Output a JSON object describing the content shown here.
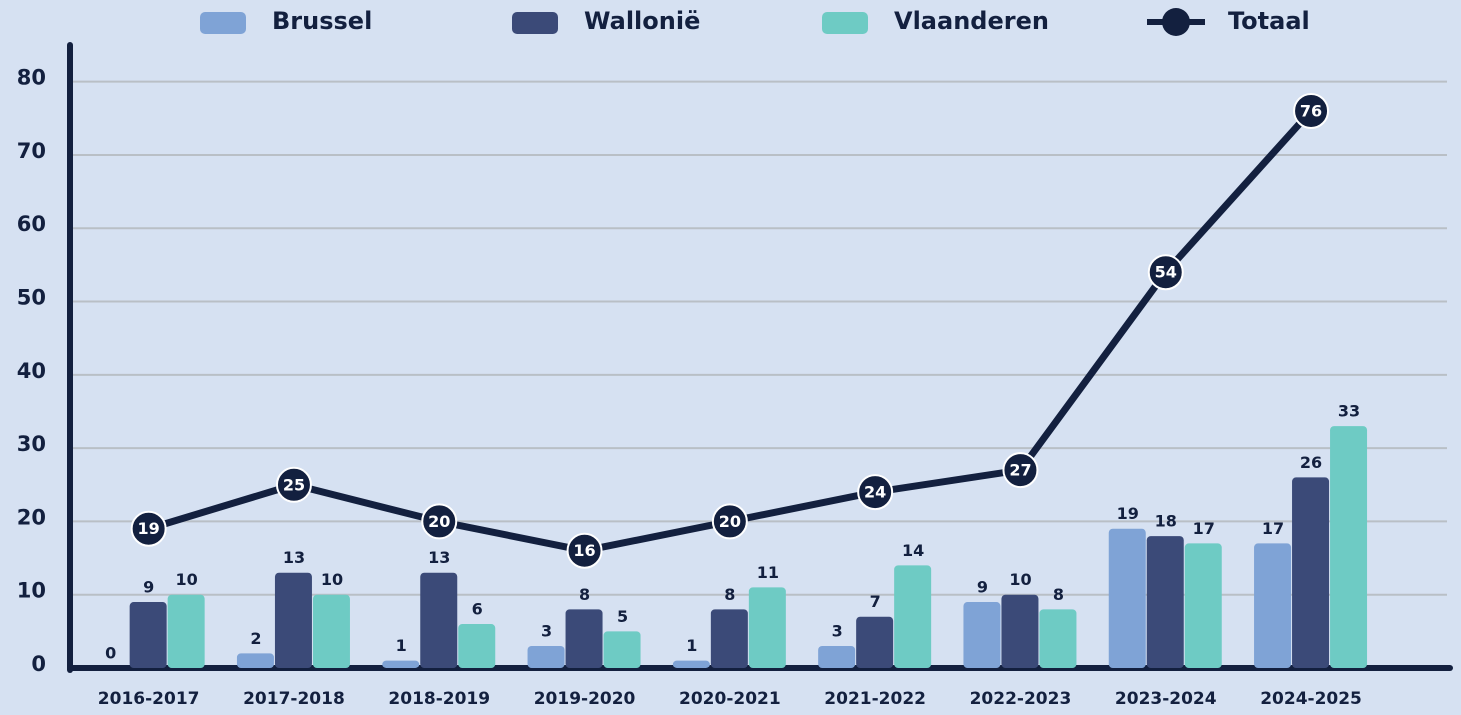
{
  "chart_data": {
    "type": "bar",
    "categories": [
      "2016-2017",
      "2017-2018",
      "2018-2019",
      "2019-2020",
      "2020-2021",
      "2021-2022",
      "2022-2023",
      "2023-2024",
      "2024-2025"
    ],
    "series": [
      {
        "name": "Brussel",
        "color": "#7fa3d6",
        "type": "bar",
        "values": [
          0,
          2,
          1,
          3,
          1,
          3,
          9,
          19,
          17
        ]
      },
      {
        "name": "Wallonië",
        "color": "#3b4a78",
        "type": "bar",
        "values": [
          9,
          13,
          13,
          8,
          8,
          7,
          10,
          18,
          26
        ]
      },
      {
        "name": "Vlaanderen",
        "color": "#6ecbc4",
        "type": "bar",
        "values": [
          10,
          10,
          6,
          5,
          11,
          14,
          8,
          17,
          33
        ]
      },
      {
        "name": "Totaal",
        "color": "#13203f",
        "type": "line",
        "values": [
          19,
          25,
          20,
          16,
          20,
          24,
          27,
          54,
          76
        ]
      }
    ],
    "ylim": [
      0,
      85
    ],
    "yticks": [
      0,
      10,
      20,
      30,
      40,
      50,
      60,
      70,
      80
    ],
    "grid": true,
    "legend": "top"
  }
}
